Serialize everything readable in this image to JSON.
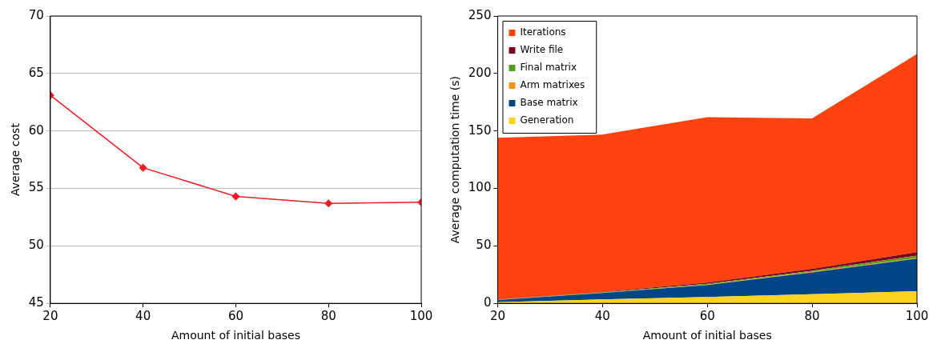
{
  "chart_data": [
    {
      "type": "line",
      "xlabel": "Amount of initial bases",
      "ylabel": "Average cost",
      "x": [
        20,
        40,
        60,
        80,
        100
      ],
      "xlim": [
        20,
        100
      ],
      "xticks": [
        20,
        40,
        60,
        80,
        100
      ],
      "ylim": [
        45,
        70
      ],
      "yticks": [
        45,
        50,
        55,
        60,
        65,
        70
      ],
      "grid": "y",
      "legend": false,
      "marker": "diamond",
      "series": [
        {
          "color": "#ee1c25",
          "values": [
            63.1,
            56.8,
            54.3,
            53.7,
            53.8
          ]
        }
      ]
    },
    {
      "type": "area",
      "stacked": true,
      "xlabel": "Amount of initial bases",
      "ylabel": "Average computation time (s)",
      "x": [
        20,
        40,
        60,
        80,
        100
      ],
      "xlim": [
        20,
        100
      ],
      "xticks": [
        20,
        40,
        60,
        80,
        100
      ],
      "ylim": [
        0,
        250
      ],
      "yticks": [
        0,
        50,
        100,
        150,
        200,
        250
      ],
      "grid": false,
      "legend": "top left",
      "series": [
        {
          "name": "Generation",
          "color": "#ffd320",
          "values": [
            1,
            3.5,
            5.5,
            8,
            10.5
          ]
        },
        {
          "name": "Base matrix",
          "color": "#004586",
          "values": [
            2,
            5.5,
            10.5,
            19,
            28.5
          ]
        },
        {
          "name": "Arm matrixes",
          "color": "#ff950e",
          "values": [
            0.1,
            0.2,
            0.3,
            0.4,
            0.5
          ]
        },
        {
          "name": "Final matrix",
          "color": "#579d1c",
          "values": [
            0.2,
            0.3,
            0.7,
            1,
            2
          ]
        },
        {
          "name": "Write file",
          "color": "#7e0021",
          "values": [
            0.2,
            0.4,
            1,
            1.6,
            3
          ]
        },
        {
          "name": "Iterations",
          "color": "#ff420e",
          "values": [
            140.5,
            137,
            144,
            131,
            172.5
          ]
        }
      ]
    }
  ]
}
